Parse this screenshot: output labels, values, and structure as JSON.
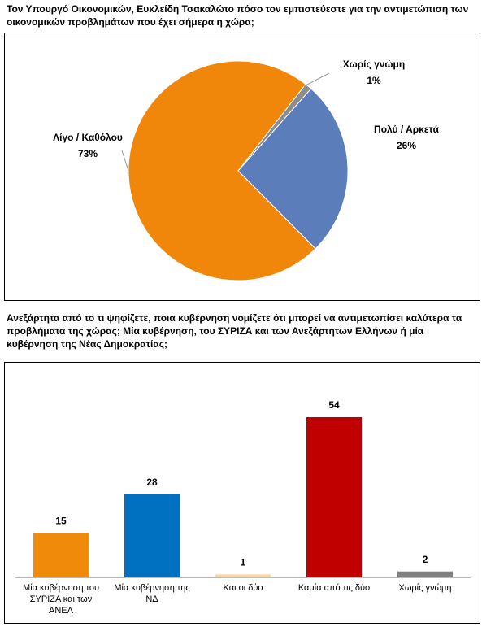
{
  "chart_data": [
    {
      "type": "pie",
      "title": "Τον Υπουργό Οικονομικών, Ευκλείδη Τσακαλώτο πόσο τον εμπιστεύεστε για την αντιμετώπιση των οικονομικών προβλημάτων που έχει σήμερα η χώρα;",
      "categories": [
        "Πολύ / Αρκετά",
        "Λίγο / Καθόλου",
        "Χωρίς γνώμη"
      ],
      "values": [
        26,
        73,
        1
      ],
      "value_labels": [
        "26%",
        "73%",
        "1%"
      ],
      "colors": [
        "#5B7DBA",
        "#F0860A",
        "#8C8C8C"
      ]
    },
    {
      "type": "bar",
      "title": "Ανεξάρτητα από το τι ψηφίζετε, ποια κυβέρνηση νομίζετε ότι μπορεί να αντιμετωπίσει καλύτερα τα προβλήματα της χώρας; Μία κυβέρνηση, του ΣΥΡΙΖΑ και των Ανεξάρτητων Ελλήνων ή μία κυβέρνηση της Νέας Δημοκρατίας;",
      "categories": [
        "Μία κυβέρνηση του ΣΥΡΙΖΑ και των ΑΝΕΛ",
        "Μία κυβέρνηση της ΝΔ",
        "Και οι δύο",
        "Καμία από τις δύο",
        "Χωρίς γνώμη"
      ],
      "values": [
        15,
        28,
        1,
        54,
        2
      ],
      "colors": [
        "#F08A0A",
        "#0070C0",
        "#FAD7A0",
        "#C00000",
        "#808080"
      ]
    }
  ]
}
